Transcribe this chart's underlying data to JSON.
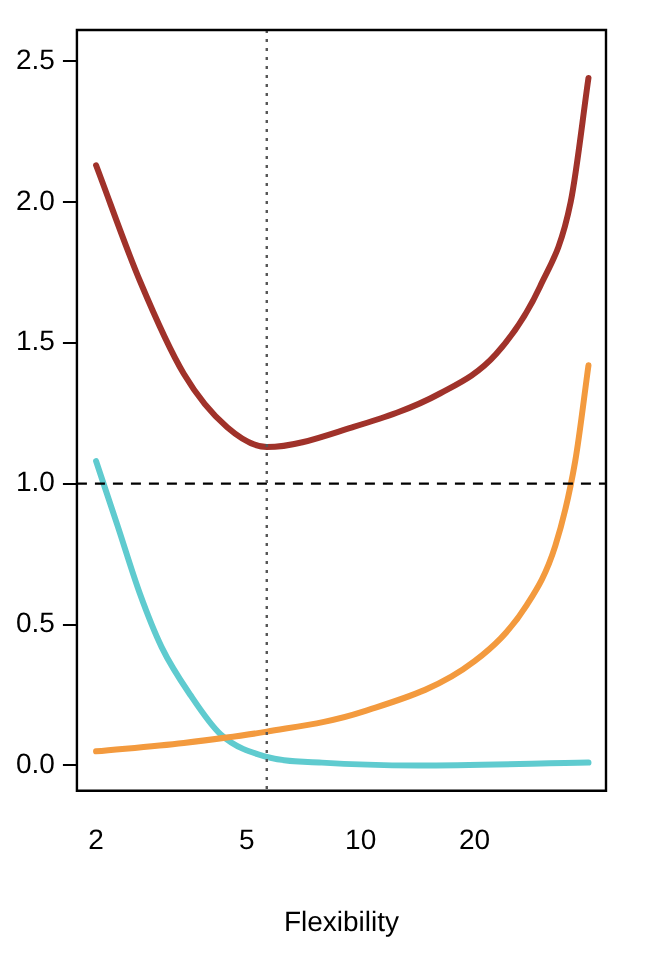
{
  "chart_data": {
    "type": "line",
    "xlabel": "Flexibility",
    "log": "x",
    "xlim": [
      1.78,
      44.5
    ],
    "xticks": [
      2,
      5,
      10,
      20
    ],
    "ylim": [
      -0.09,
      2.61
    ],
    "yticks": [
      {
        "value": 0,
        "label": "0.0"
      },
      {
        "value": 0.5,
        "label": "0.5"
      },
      {
        "value": 1,
        "label": "1.0"
      },
      {
        "value": 1.5,
        "label": "1.5"
      },
      {
        "value": 2,
        "label": "2.0"
      },
      {
        "value": 2.5,
        "label": "2.5"
      }
    ],
    "grid": false,
    "legend": false,
    "marker": "none",
    "line_style": "solid",
    "series": [
      {
        "color": "#a0322a",
        "x": [
          2,
          2.61,
          3.41,
          4.44,
          5.65,
          9.5,
          16.2,
          22.8,
          29.8,
          35.9,
          40
        ],
        "values": [
          2.13,
          1.72,
          1.39,
          1.2,
          1.13,
          1.2,
          1.32,
          1.46,
          1.7,
          2.0,
          2.44
        ]
      },
      {
        "color": "#f39a3e",
        "x": [
          2,
          3.41,
          5.65,
          10.1,
          20,
          27.5,
          32.7,
          36.9,
          40
        ],
        "values": [
          0.05,
          0.08,
          0.12,
          0.19,
          0.37,
          0.57,
          0.78,
          1.08,
          1.42
        ]
      },
      {
        "color": "#5fcbcf",
        "x": [
          2,
          2.28,
          2.61,
          2.98,
          3.55,
          4.27,
          5.65,
          7.9,
          14.2,
          40
        ],
        "values": [
          1.08,
          0.85,
          0.61,
          0.42,
          0.25,
          0.11,
          0.03,
          0.01,
          0,
          0.01
        ]
      }
    ],
    "ref_lines": [
      {
        "axis": "y",
        "value": 1,
        "color": "#000000",
        "line_style": "dashed"
      },
      {
        "axis": "x",
        "value": 5.65,
        "color": "#555555",
        "line_style": "dotted"
      }
    ]
  }
}
